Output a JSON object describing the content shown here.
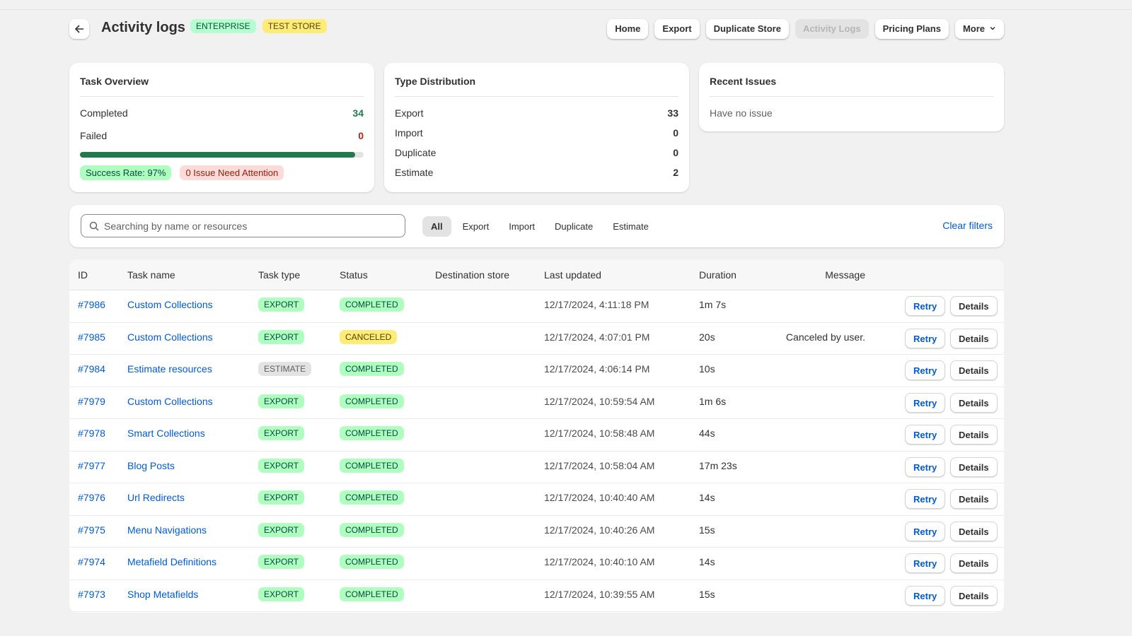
{
  "header": {
    "title": "Activity logs",
    "badges": [
      "ENTERPRISE",
      "TEST STORE"
    ],
    "actions": [
      "Home",
      "Export",
      "Duplicate Store",
      "Activity Logs",
      "Pricing Plans",
      "More"
    ]
  },
  "task_overview": {
    "title": "Task Overview",
    "rows": [
      {
        "label": "Completed",
        "value": 34
      },
      {
        "label": "Failed",
        "value": 0
      }
    ],
    "success_rate": {
      "value": 97,
      "label": "Success Rate: 97%"
    },
    "issues_badge": "0 Issue Need Attention"
  },
  "type_distribution": {
    "title": "Type Distribution",
    "rows": [
      {
        "label": "Export",
        "value": 33
      },
      {
        "label": "Import",
        "value": 0
      },
      {
        "label": "Duplicate",
        "value": 0
      },
      {
        "label": "Estimate",
        "value": 2
      }
    ]
  },
  "recent_issues": {
    "title": "Recent Issues",
    "message": "Have no issue"
  },
  "filters": {
    "search_placeholder": "Searching by name or resources",
    "tabs": [
      "All",
      "Export",
      "Import",
      "Duplicate",
      "Estimate"
    ],
    "clear": "Clear filters"
  },
  "table": {
    "columns": [
      "ID",
      "Task name",
      "Task type",
      "Status",
      "Destination store",
      "Last updated",
      "Duration",
      "Message"
    ],
    "row_actions": [
      "Retry",
      "Details"
    ],
    "rows": [
      {
        "id": "#7986",
        "name": "Custom Collections",
        "type": "EXPORT",
        "status": "COMPLETED",
        "updated": "12/17/2024, 4:11:18 PM",
        "duration": "1m 7s"
      },
      {
        "id": "#7985",
        "name": "Custom Collections",
        "type": "EXPORT",
        "status": "CANCELED",
        "updated": "12/17/2024, 4:07:01 PM",
        "duration": "20s",
        "message": "Canceled by user."
      },
      {
        "id": "#7984",
        "name": "Estimate resources",
        "type": "ESTIMATE",
        "status": "COMPLETED",
        "updated": "12/17/2024, 4:06:14 PM",
        "duration": "10s"
      },
      {
        "id": "#7979",
        "name": "Custom Collections",
        "type": "EXPORT",
        "status": "COMPLETED",
        "updated": "12/17/2024, 10:59:54 AM",
        "duration": "1m 6s"
      },
      {
        "id": "#7978",
        "name": "Smart Collections",
        "type": "EXPORT",
        "status": "COMPLETED",
        "updated": "12/17/2024, 10:58:48 AM",
        "duration": "44s"
      },
      {
        "id": "#7977",
        "name": "Blog Posts",
        "type": "EXPORT",
        "status": "COMPLETED",
        "updated": "12/17/2024, 10:58:04 AM",
        "duration": "17m 23s"
      },
      {
        "id": "#7976",
        "name": "Url Redirects",
        "type": "EXPORT",
        "status": "COMPLETED",
        "updated": "12/17/2024, 10:40:40 AM",
        "duration": "14s"
      },
      {
        "id": "#7975",
        "name": "Menu Navigations",
        "type": "EXPORT",
        "status": "COMPLETED",
        "updated": "12/17/2024, 10:40:26 AM",
        "duration": "15s"
      },
      {
        "id": "#7974",
        "name": "Metafield Definitions",
        "type": "EXPORT",
        "status": "COMPLETED",
        "updated": "12/17/2024, 10:40:10 AM",
        "duration": "14s"
      },
      {
        "id": "#7973",
        "name": "Shop Metafields",
        "type": "EXPORT",
        "status": "COMPLETED",
        "updated": "12/17/2024, 10:39:55 AM",
        "duration": "15s"
      }
    ]
  }
}
